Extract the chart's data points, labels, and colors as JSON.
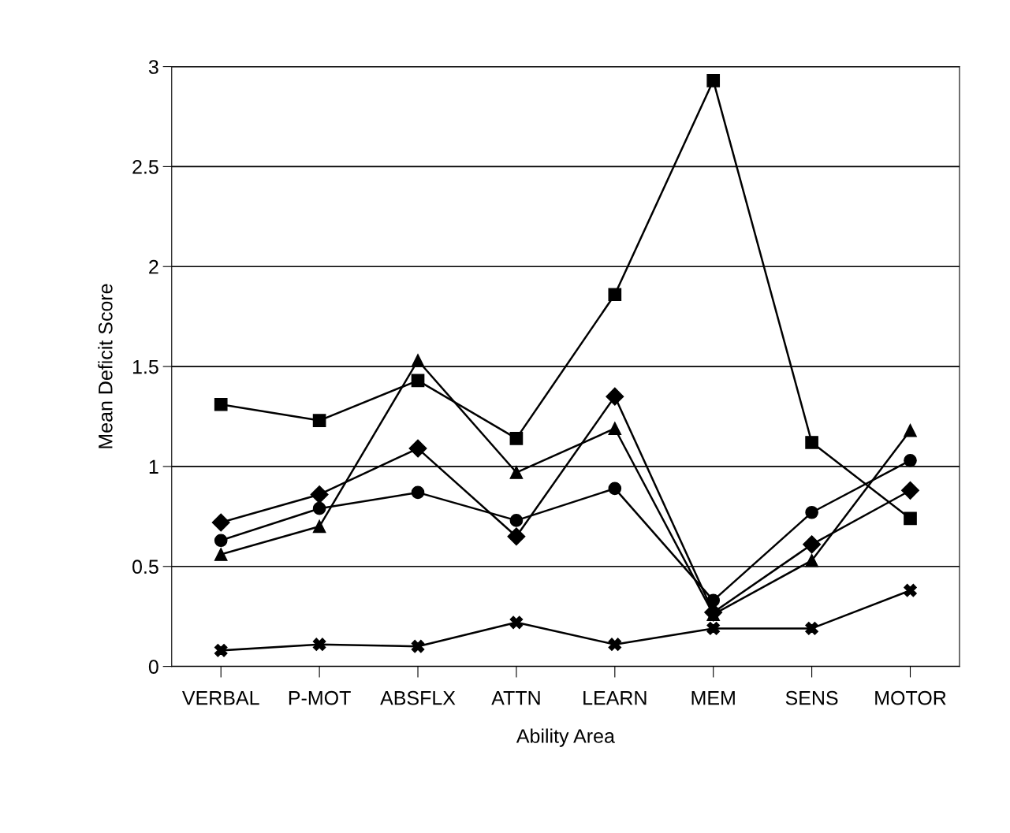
{
  "chart_data": {
    "type": "line",
    "xlabel": "Ability Area",
    "ylabel": "Mean Deficit Score",
    "categories": [
      "VERBAL",
      "P-MOT",
      "ABSFLX",
      "ATTN",
      "LEARN",
      "MEM",
      "SENS",
      "MOTOR"
    ],
    "series": [
      {
        "color": "#000000",
        "marker": "square",
        "values": [
          1.31,
          1.23,
          1.43,
          1.14,
          1.86,
          2.93,
          1.12,
          0.74
        ]
      },
      {
        "color": "#000000",
        "marker": "diamond",
        "values": [
          0.72,
          0.86,
          1.09,
          0.65,
          1.35,
          0.27,
          0.61,
          0.88
        ]
      },
      {
        "color": "#000000",
        "marker": "triangle",
        "values": [
          0.56,
          0.7,
          1.53,
          0.97,
          1.19,
          0.26,
          0.53,
          1.18
        ]
      },
      {
        "color": "#000000",
        "marker": "circle",
        "values": [
          0.63,
          0.79,
          0.87,
          0.73,
          0.89,
          0.33,
          0.77,
          1.03
        ]
      },
      {
        "color": "#000000",
        "marker": "cross",
        "values": [
          0.08,
          0.11,
          0.1,
          0.22,
          0.11,
          0.19,
          0.19,
          0.38
        ]
      }
    ],
    "ylim": [
      0,
      3
    ],
    "yticks": [
      0,
      0.5,
      1,
      1.5,
      2,
      2.5,
      3
    ],
    "grid": "y",
    "line_style": "solid"
  }
}
